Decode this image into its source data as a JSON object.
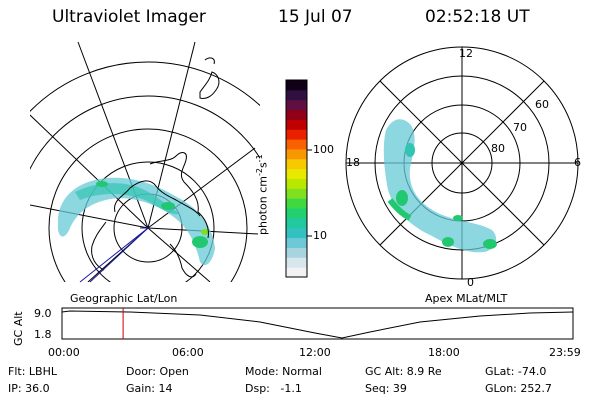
{
  "header": {
    "instrument": "Ultraviolet Imager",
    "date": "15 Jul 07",
    "time": "02:52:18 UT"
  },
  "geo_panel": {
    "label": "Geographic Lat/Lon"
  },
  "apex_panel": {
    "label": "Apex MLat/MLT",
    "mlt_labels": {
      "top": "12",
      "left": "18",
      "right": "6",
      "bottom": "0"
    },
    "mlat_labels": [
      "60",
      "70",
      "80"
    ]
  },
  "colorbar": {
    "unit_prefix": "photon cm",
    "unit_exp1": "-2",
    "unit_mid": "s",
    "unit_exp2": "-1",
    "ticks": [
      "100",
      "10"
    ],
    "colors": [
      "#f2f2f2",
      "#d8e6ee",
      "#a8d4e0",
      "#6cc8d4",
      "#33c0c0",
      "#22c8a0",
      "#22d070",
      "#40d840",
      "#80e020",
      "#b8e800",
      "#e8e800",
      "#f8c800",
      "#f89800",
      "#f86000",
      "#e82000",
      "#c00000",
      "#900018",
      "#601040",
      "#301040",
      "#100018"
    ]
  },
  "timeline": {
    "axis_label": "GC Alt",
    "y_top": "9.0",
    "y_bottom": "1.8",
    "ticks": [
      "00:00",
      "06:00",
      "12:00",
      "18:00",
      "23:59"
    ],
    "marker_time_hours": 2.87
  },
  "status": {
    "flt": "Flt: LBHL",
    "ip": "IP: 36.0",
    "door": "Door: Open",
    "gain": "Gain: 14",
    "mode": "Mode: Normal",
    "dsp": "Dsp:   -1.1",
    "gc_alt": "GC Alt: 8.9 Re",
    "seq": "Seq: 39",
    "glat": "GLat: -74.0",
    "glon": "GLon: 252.7"
  },
  "colors": {
    "marker": "#cc0000",
    "sat_track": "#1a1aa0"
  }
}
